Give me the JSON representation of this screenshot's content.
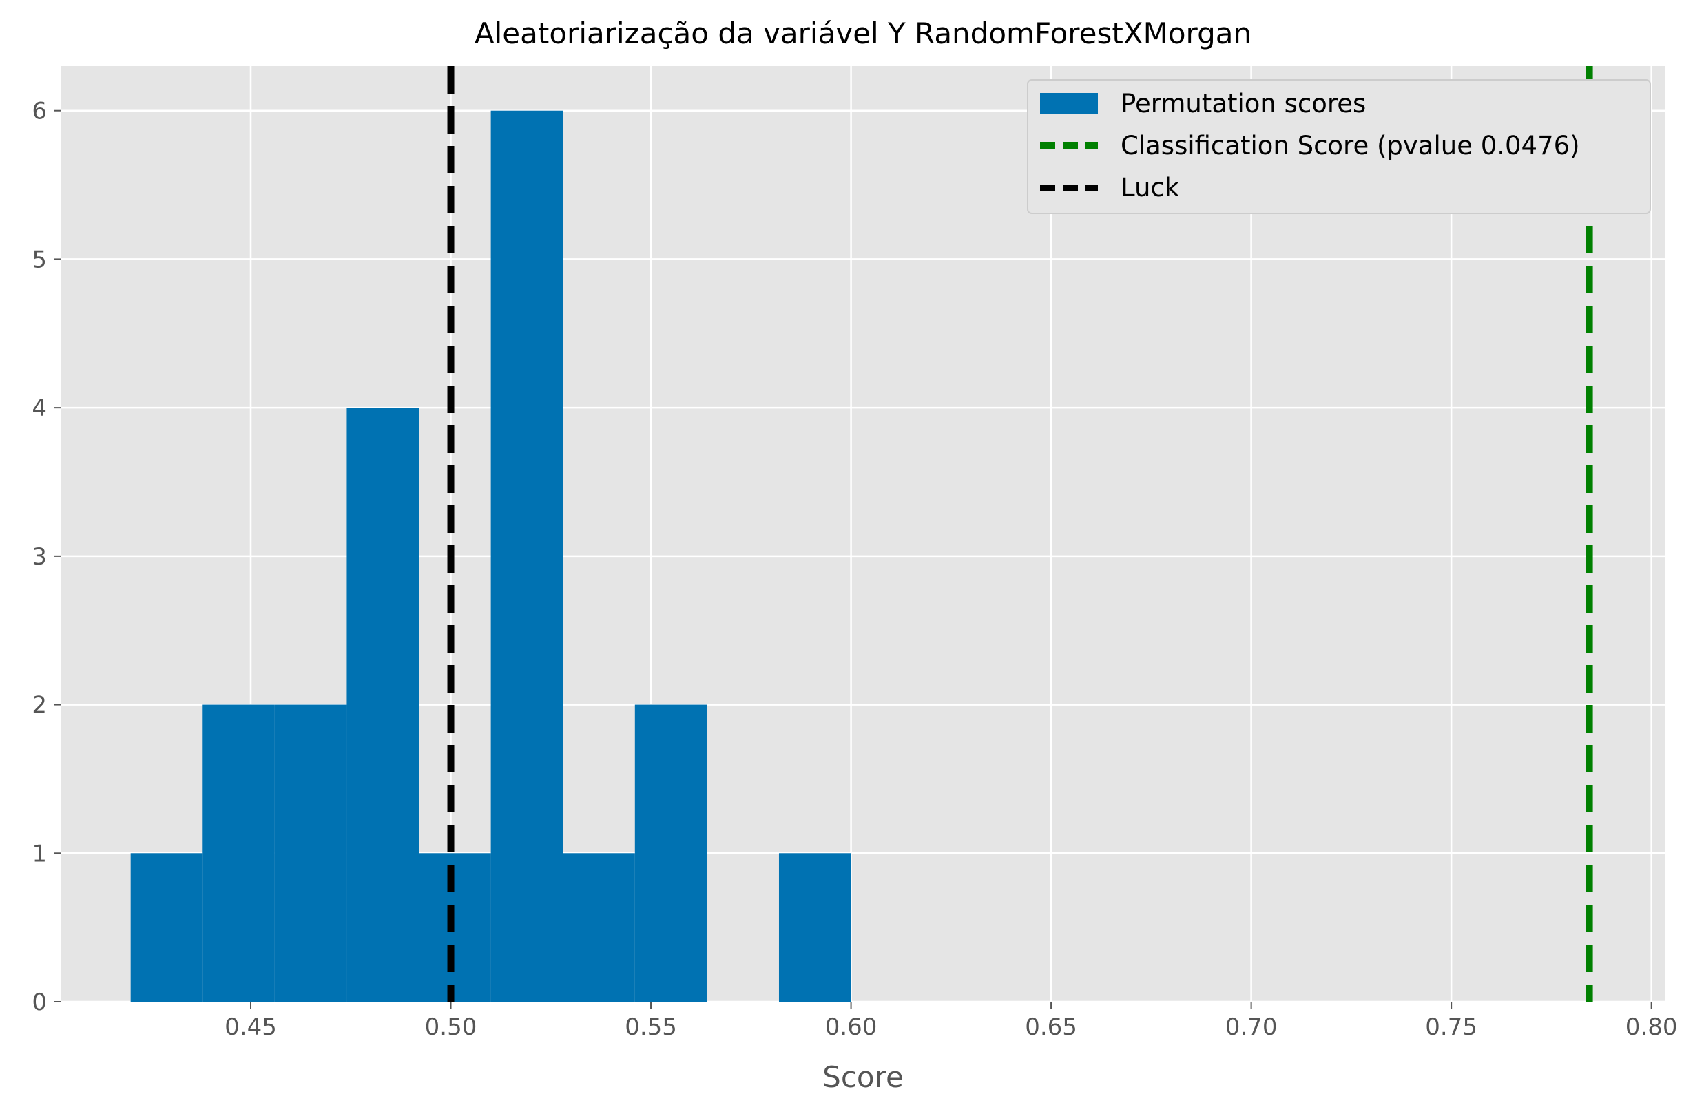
{
  "chart_data": {
    "type": "bar",
    "title": "Aleatoriarização da variável Y RandomForestXMorgan",
    "xlabel": "Score",
    "ylabel": "",
    "xlim": [
      0.4025,
      0.8035
    ],
    "ylim": [
      0,
      6.3
    ],
    "grid": true,
    "legend_position": "top-right",
    "bins": [
      {
        "left": 0.42,
        "right": 0.438,
        "count": 1
      },
      {
        "left": 0.438,
        "right": 0.456,
        "count": 2
      },
      {
        "left": 0.456,
        "right": 0.474,
        "count": 2
      },
      {
        "left": 0.474,
        "right": 0.492,
        "count": 4
      },
      {
        "left": 0.492,
        "right": 0.51,
        "count": 1
      },
      {
        "left": 0.51,
        "right": 0.528,
        "count": 6
      },
      {
        "left": 0.528,
        "right": 0.546,
        "count": 1
      },
      {
        "left": 0.546,
        "right": 0.564,
        "count": 2
      },
      {
        "left": 0.564,
        "right": 0.582,
        "count": 0
      },
      {
        "left": 0.582,
        "right": 0.6,
        "count": 1
      }
    ],
    "vlines": [
      {
        "name": "Classification Score (pvalue 0.0476)",
        "x": 0.7845,
        "color": "#008000"
      },
      {
        "name": "Luck",
        "x": 0.5,
        "color": "#000000"
      }
    ],
    "x_ticks": [
      "0.45",
      "0.50",
      "0.55",
      "0.60",
      "0.65",
      "0.70",
      "0.75",
      "0.80"
    ],
    "y_ticks": [
      "0",
      "1",
      "2",
      "3",
      "4",
      "5",
      "6"
    ],
    "legend": [
      {
        "label": "Permutation scores",
        "kind": "patch",
        "color": "#0072B2"
      },
      {
        "label": "Classification Score (pvalue 0.0476)",
        "kind": "dashed-line",
        "color": "#008000"
      },
      {
        "label": "Luck",
        "kind": "dashed-line",
        "color": "#000000"
      }
    ],
    "colors": {
      "bar": "#0072B2",
      "plot_background": "#E5E5E5",
      "grid": "#FFFFFF",
      "tick_text": "#555555"
    }
  }
}
